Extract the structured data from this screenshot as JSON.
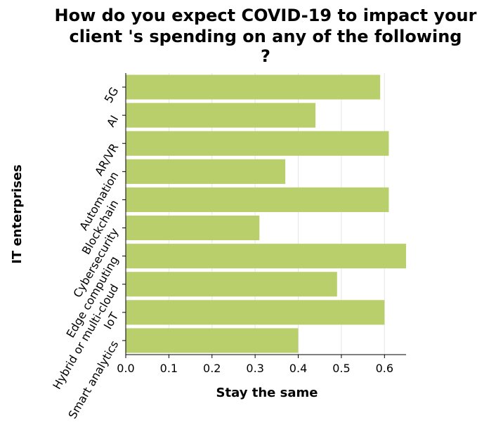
{
  "chart_data": {
    "type": "bar",
    "orientation": "horizontal",
    "title_lines": [
      "How do you expect COVID-19 to impact your",
      "client 's spending on any of the following",
      "?"
    ],
    "xlabel": "Stay the same",
    "ylabel": "IT enterprises",
    "categories": [
      "5G",
      "AI",
      "AR/VR",
      "Automation",
      "Blockchain",
      "Cybersecurity",
      "Edge computing",
      "Hybrid or multi-cloud",
      "IoT",
      "Smart analytics"
    ],
    "values": [
      0.59,
      0.44,
      0.61,
      0.37,
      0.61,
      0.31,
      0.65,
      0.49,
      0.6,
      0.4
    ],
    "xlim": [
      0,
      0.65
    ],
    "xticks": [
      0.0,
      0.1,
      0.2,
      0.3,
      0.4,
      0.5,
      0.6
    ],
    "xtick_labels": [
      "0.0",
      "0.1",
      "0.2",
      "0.3",
      "0.4",
      "0.5",
      "0.6"
    ],
    "grid": true,
    "bar_color": "#b8cf6c"
  }
}
